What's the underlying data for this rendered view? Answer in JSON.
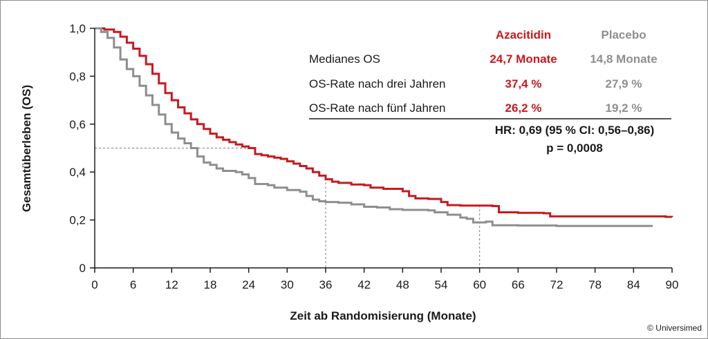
{
  "chart_data": {
    "type": "line",
    "xlabel": "Zeit ab Randomisierung (Monate)",
    "ylabel": "Gesamtüberleben (OS)",
    "xlim": [
      0,
      90
    ],
    "ylim": [
      0,
      1
    ],
    "x_ticks": [
      "0",
      "6",
      "12",
      "18",
      "24",
      "30",
      "36",
      "42",
      "48",
      "54",
      "60",
      "66",
      "72",
      "78",
      "84",
      "90"
    ],
    "y_ticks": [
      "0",
      "0,2",
      "0,4",
      "0,6",
      "0,8",
      "1,0"
    ],
    "grid": false,
    "series": [
      {
        "name": "Azacitidin",
        "color": "#c8191e",
        "points": [
          [
            0,
            1.0
          ],
          [
            1.5,
            0.995
          ],
          [
            3,
            0.985
          ],
          [
            4,
            0.965
          ],
          [
            5,
            0.94
          ],
          [
            6,
            0.915
          ],
          [
            7,
            0.885
          ],
          [
            8,
            0.85
          ],
          [
            9,
            0.81
          ],
          [
            10,
            0.77
          ],
          [
            11,
            0.73
          ],
          [
            12,
            0.7
          ],
          [
            13,
            0.67
          ],
          [
            14,
            0.645
          ],
          [
            15,
            0.62
          ],
          [
            16,
            0.6
          ],
          [
            17,
            0.58
          ],
          [
            18,
            0.56
          ],
          [
            19,
            0.545
          ],
          [
            20,
            0.535
          ],
          [
            21,
            0.525
          ],
          [
            22,
            0.515
          ],
          [
            23,
            0.507
          ],
          [
            24,
            0.5
          ],
          [
            25,
            0.475
          ],
          [
            26,
            0.47
          ],
          [
            27,
            0.465
          ],
          [
            28,
            0.46
          ],
          [
            29,
            0.455
          ],
          [
            30,
            0.445
          ],
          [
            31,
            0.435
          ],
          [
            32,
            0.425
          ],
          [
            33,
            0.415
          ],
          [
            34,
            0.4
          ],
          [
            35,
            0.385
          ],
          [
            36,
            0.37
          ],
          [
            37,
            0.36
          ],
          [
            38,
            0.355
          ],
          [
            40,
            0.348
          ],
          [
            42,
            0.345
          ],
          [
            43,
            0.335
          ],
          [
            45,
            0.33
          ],
          [
            48,
            0.32
          ],
          [
            49,
            0.3
          ],
          [
            50,
            0.29
          ],
          [
            52,
            0.288
          ],
          [
            54,
            0.275
          ],
          [
            55,
            0.262
          ],
          [
            57,
            0.26
          ],
          [
            60,
            0.26
          ],
          [
            62,
            0.258
          ],
          [
            63,
            0.232
          ],
          [
            66,
            0.23
          ],
          [
            70,
            0.228
          ],
          [
            71,
            0.215
          ],
          [
            78,
            0.215
          ],
          [
            84,
            0.215
          ],
          [
            89,
            0.213
          ],
          [
            90,
            0.212
          ]
        ]
      },
      {
        "name": "Placebo",
        "color": "#8e8e8e",
        "points": [
          [
            0,
            1.0
          ],
          [
            1,
            0.985
          ],
          [
            2,
            0.96
          ],
          [
            3,
            0.92
          ],
          [
            4,
            0.87
          ],
          [
            5,
            0.83
          ],
          [
            6,
            0.8
          ],
          [
            7,
            0.76
          ],
          [
            8,
            0.72
          ],
          [
            9,
            0.68
          ],
          [
            10,
            0.64
          ],
          [
            11,
            0.6
          ],
          [
            12,
            0.565
          ],
          [
            13,
            0.54
          ],
          [
            14,
            0.52
          ],
          [
            15,
            0.5
          ],
          [
            16,
            0.465
          ],
          [
            17,
            0.44
          ],
          [
            18,
            0.43
          ],
          [
            19,
            0.415
          ],
          [
            20,
            0.405
          ],
          [
            22,
            0.4
          ],
          [
            23,
            0.39
          ],
          [
            24,
            0.375
          ],
          [
            25,
            0.35
          ],
          [
            27,
            0.345
          ],
          [
            28,
            0.335
          ],
          [
            30,
            0.325
          ],
          [
            32,
            0.318
          ],
          [
            33,
            0.3
          ],
          [
            34,
            0.285
          ],
          [
            35,
            0.278
          ],
          [
            36,
            0.275
          ],
          [
            38,
            0.272
          ],
          [
            40,
            0.265
          ],
          [
            42,
            0.255
          ],
          [
            44,
            0.252
          ],
          [
            46,
            0.245
          ],
          [
            48,
            0.242
          ],
          [
            52,
            0.24
          ],
          [
            53,
            0.232
          ],
          [
            55,
            0.222
          ],
          [
            57,
            0.21
          ],
          [
            58,
            0.205
          ],
          [
            59,
            0.19
          ],
          [
            60,
            0.19
          ],
          [
            61,
            0.193
          ],
          [
            62,
            0.178
          ],
          [
            66,
            0.177
          ],
          [
            72,
            0.175
          ],
          [
            78,
            0.175
          ],
          [
            84,
            0.175
          ],
          [
            87,
            0.175
          ]
        ]
      }
    ],
    "reference_lines": {
      "horizontal_y": 0.5,
      "horizontal_to_x": 24.7,
      "vertical_x": [
        {
          "x": 36,
          "y_top": 0.374
        },
        {
          "x": 60,
          "y_top": 0.262
        }
      ]
    },
    "table": {
      "headers": [
        "Azacitidin",
        "Placebo"
      ],
      "rows": [
        {
          "label": "Medianes OS",
          "azacitidin": "24,7 Monate",
          "placebo": "14,8 Monate"
        },
        {
          "label": "OS-Rate nach drei Jahren",
          "azacitidin": "37,4 %",
          "placebo": "27,9 %"
        },
        {
          "label": "OS-Rate nach fünf Jahren",
          "azacitidin": "26,2 %",
          "placebo": "19,2 %"
        }
      ],
      "hr": "HR: 0,69 (95 % CI: 0,56–0,86)",
      "p": "p = 0,0008"
    }
  },
  "copyright": "© Universimed"
}
